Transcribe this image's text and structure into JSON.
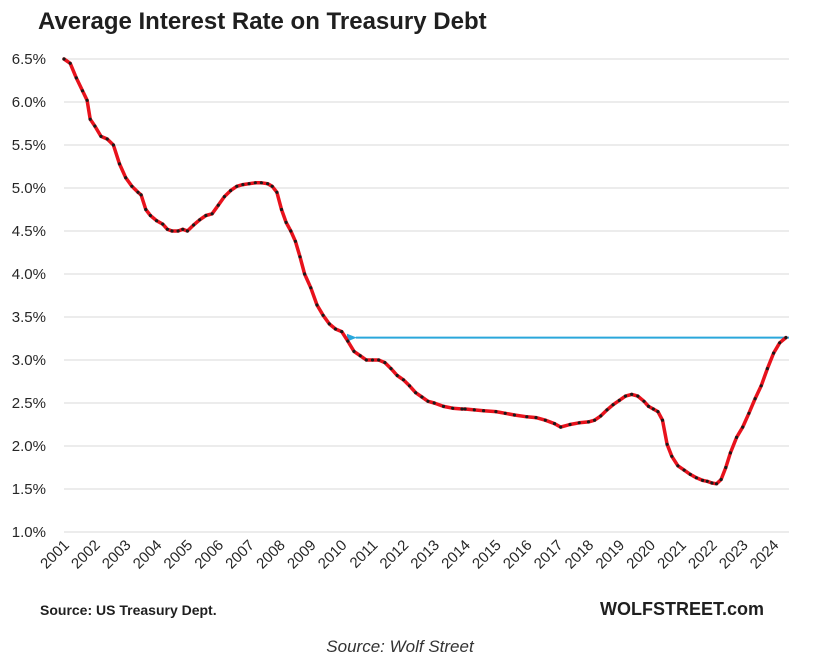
{
  "chart_data": {
    "type": "line",
    "title": "Average Interest Rate on Treasury Debt",
    "xlabel": "",
    "ylabel": "",
    "ylim": [
      1.0,
      6.5
    ],
    "xlim": [
      2001.0,
      2024.5
    ],
    "grid": "horizontal",
    "yticks": [
      "1.0%",
      "1.5%",
      "2.0%",
      "2.5%",
      "3.0%",
      "3.5%",
      "4.0%",
      "4.5%",
      "5.0%",
      "5.5%",
      "6.0%",
      "6.5%"
    ],
    "xticks": [
      "2001",
      "2002",
      "2003",
      "2004",
      "2005",
      "2006",
      "2007",
      "2008",
      "2009",
      "2010",
      "2011",
      "2012",
      "2013",
      "2014",
      "2015",
      "2016",
      "2017",
      "2018",
      "2019",
      "2020",
      "2021",
      "2022",
      "2023",
      "2024"
    ],
    "series": [
      {
        "color": "#e8121c",
        "marker_color": "#1a1a1a",
        "x": [
          2001.0,
          2001.2,
          2001.4,
          2001.6,
          2001.75,
          2001.85,
          2002.0,
          2002.2,
          2002.4,
          2002.6,
          2002.8,
          2003.0,
          2003.2,
          2003.4,
          2003.5,
          2003.65,
          2003.8,
          2004.0,
          2004.2,
          2004.35,
          2004.5,
          2004.7,
          2004.85,
          2005.0,
          2005.2,
          2005.4,
          2005.6,
          2005.8,
          2006.0,
          2006.2,
          2006.4,
          2006.6,
          2006.8,
          2007.0,
          2007.2,
          2007.4,
          2007.6,
          2007.75,
          2007.9,
          2008.05,
          2008.2,
          2008.35,
          2008.5,
          2008.65,
          2008.8,
          2009.0,
          2009.2,
          2009.4,
          2009.6,
          2009.8,
          2010.0,
          2010.2,
          2010.4,
          2010.6,
          2010.8,
          2011.0,
          2011.2,
          2011.4,
          2011.6,
          2011.8,
          2012.0,
          2012.2,
          2012.4,
          2012.6,
          2012.8,
          2013.0,
          2013.3,
          2013.6,
          2013.9,
          2014.0,
          2014.3,
          2014.6,
          2015.0,
          2015.3,
          2015.6,
          2016.0,
          2016.3,
          2016.6,
          2016.9,
          2017.1,
          2017.4,
          2017.7,
          2018.0,
          2018.2,
          2018.4,
          2018.6,
          2018.8,
          2019.0,
          2019.2,
          2019.4,
          2019.6,
          2019.8,
          2019.95,
          2020.1,
          2020.25,
          2020.4,
          2020.55,
          2020.7,
          2020.9,
          2021.1,
          2021.3,
          2021.5,
          2021.7,
          2021.85,
          2022.0,
          2022.15,
          2022.3,
          2022.45,
          2022.6,
          2022.8,
          2023.0,
          2023.2,
          2023.4,
          2023.6,
          2023.8,
          2024.0,
          2024.2,
          2024.4
        ],
        "y": [
          6.5,
          6.45,
          6.28,
          6.13,
          6.02,
          5.8,
          5.72,
          5.6,
          5.57,
          5.5,
          5.28,
          5.12,
          5.02,
          4.95,
          4.92,
          4.75,
          4.68,
          4.62,
          4.58,
          4.52,
          4.5,
          4.5,
          4.52,
          4.5,
          4.57,
          4.63,
          4.68,
          4.7,
          4.8,
          4.9,
          4.97,
          5.02,
          5.04,
          5.05,
          5.06,
          5.06,
          5.05,
          5.02,
          4.95,
          4.75,
          4.6,
          4.5,
          4.38,
          4.2,
          4.0,
          3.84,
          3.64,
          3.52,
          3.42,
          3.36,
          3.33,
          3.22,
          3.1,
          3.05,
          3.0,
          3.0,
          3.0,
          2.97,
          2.9,
          2.82,
          2.77,
          2.7,
          2.62,
          2.57,
          2.52,
          2.5,
          2.46,
          2.44,
          2.43,
          2.43,
          2.42,
          2.41,
          2.4,
          2.38,
          2.36,
          2.34,
          2.33,
          2.3,
          2.26,
          2.22,
          2.25,
          2.27,
          2.28,
          2.3,
          2.35,
          2.42,
          2.48,
          2.53,
          2.58,
          2.6,
          2.58,
          2.52,
          2.46,
          2.43,
          2.4,
          2.3,
          2.02,
          1.88,
          1.77,
          1.72,
          1.67,
          1.63,
          1.6,
          1.59,
          1.57,
          1.56,
          1.61,
          1.75,
          1.92,
          2.1,
          2.22,
          2.38,
          2.55,
          2.7,
          2.9,
          3.08,
          3.2,
          3.26
        ]
      }
    ],
    "annotations": [
      {
        "type": "arrow",
        "y": 3.26,
        "x_from": 2024.5,
        "x_to": 2010.2,
        "color": "#2aa7db"
      }
    ]
  },
  "footer": {
    "source_label": "Source: US Treasury Dept.",
    "brand": "WOLFSTREET.com"
  },
  "caption": "Source: Wolf Street"
}
